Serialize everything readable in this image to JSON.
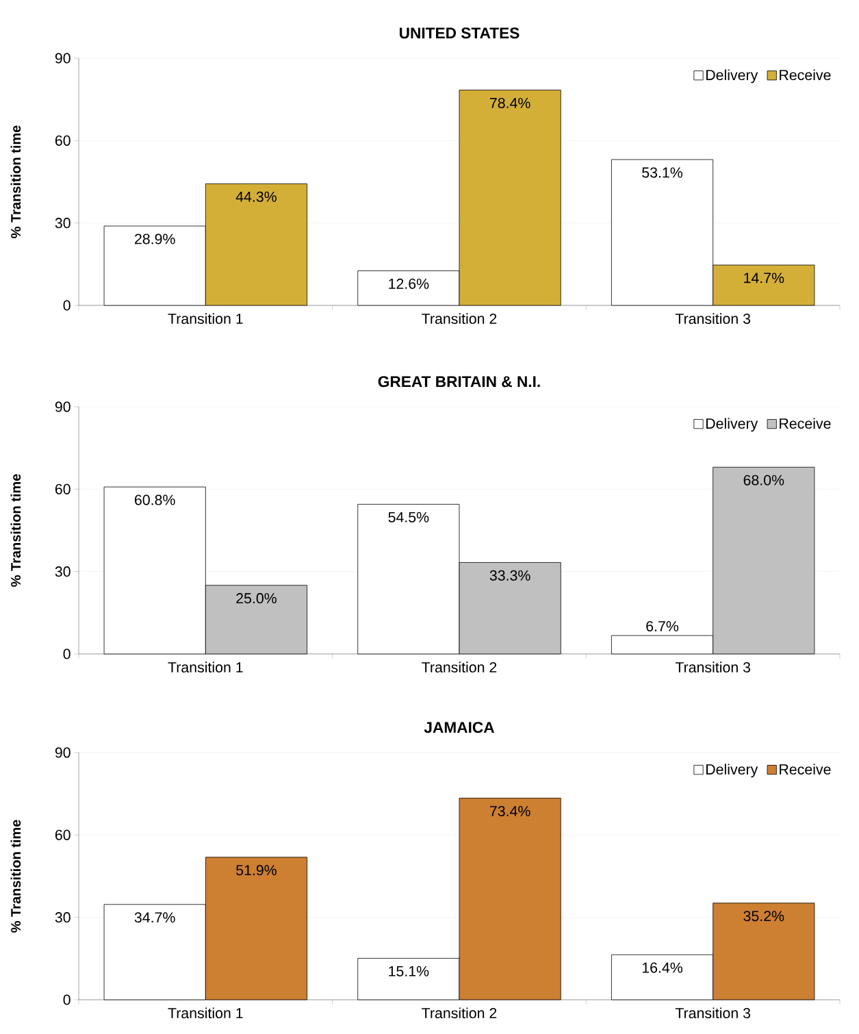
{
  "chart_data": [
    {
      "type": "bar",
      "title": "UNITED STATES",
      "ylabel": "% Transition time",
      "categories": [
        "Transition 1",
        "Transition 2",
        "Transition 3"
      ],
      "ylim": [
        0,
        90
      ],
      "yticks": [
        0,
        30,
        60,
        90
      ],
      "grid": "y",
      "legend": "top right",
      "series": [
        {
          "name": "Delivery",
          "color": "#ffffff",
          "values": [
            28.9,
            12.6,
            53.1
          ],
          "value_labels": [
            "28.9%",
            "12.6%",
            "53.1%"
          ]
        },
        {
          "name": "Receive",
          "color": "#d4af37",
          "values": [
            44.3,
            78.4,
            14.7
          ],
          "value_labels": [
            "44.3%",
            "78.4%",
            "14.7%"
          ]
        }
      ]
    },
    {
      "type": "bar",
      "title": "GREAT BRITAIN & N.I.",
      "ylabel": "% Transition time",
      "categories": [
        "Transition 1",
        "Transition 2",
        "Transition 3"
      ],
      "ylim": [
        0,
        90
      ],
      "yticks": [
        0,
        30,
        60,
        90
      ],
      "grid": "y",
      "legend": "top right",
      "series": [
        {
          "name": "Delivery",
          "color": "#ffffff",
          "values": [
            60.8,
            54.5,
            6.7
          ],
          "value_labels": [
            "60.8%",
            "54.5%",
            "6.7%"
          ]
        },
        {
          "name": "Receive",
          "color": "#c0c0c0",
          "values": [
            25.0,
            33.3,
            68.0
          ],
          "value_labels": [
            "25.0%",
            "33.3%",
            "68.0%"
          ]
        }
      ]
    },
    {
      "type": "bar",
      "title": "JAMAICA",
      "ylabel": "% Transition time",
      "categories": [
        "Transition 1",
        "Transition 2",
        "Transition 3"
      ],
      "ylim": [
        0,
        90
      ],
      "yticks": [
        0,
        30,
        60,
        90
      ],
      "grid": "y",
      "legend": "top right",
      "series": [
        {
          "name": "Delivery",
          "color": "#ffffff",
          "values": [
            34.7,
            15.1,
            16.4
          ],
          "value_labels": [
            "34.7%",
            "15.1%",
            "16.4%"
          ]
        },
        {
          "name": "Receive",
          "color": "#cd7f32",
          "values": [
            51.9,
            73.4,
            35.2
          ],
          "value_labels": [
            "51.9%",
            "73.4%",
            "35.2%"
          ]
        }
      ]
    }
  ]
}
